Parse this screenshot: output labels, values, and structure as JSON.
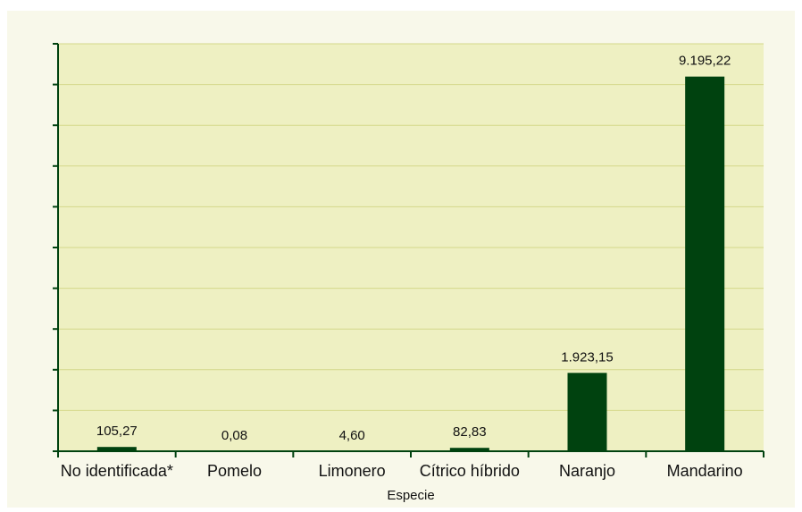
{
  "chart_data": {
    "type": "bar",
    "x_label": "Especie",
    "categories": [
      "No identificada*",
      "Pomelo",
      "Limonero",
      "Cítrico híbrido",
      "Naranjo",
      "Mandarino"
    ],
    "values": [
      105.27,
      0.08,
      4.6,
      82.83,
      1923.15,
      9195.22
    ],
    "value_labels": [
      "105,27",
      "0,08",
      "4,60",
      "82,83",
      "1.923,15",
      "9.195,22"
    ],
    "color": "#00420f",
    "ylim": [
      0,
      10000
    ],
    "yticks": [
      0,
      1000,
      2000,
      3000,
      4000,
      5000,
      6000,
      7000,
      8000,
      9000,
      10000
    ],
    "grid": true
  }
}
